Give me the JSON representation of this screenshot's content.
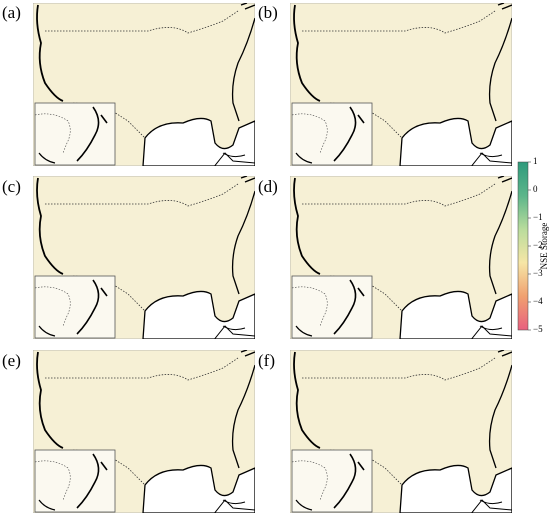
{
  "panels": [
    {
      "label": "(a)"
    },
    {
      "label": "(b)"
    },
    {
      "label": "(c)"
    },
    {
      "label": "(d)"
    },
    {
      "label": "(e)"
    },
    {
      "label": "(f)"
    }
  ],
  "colorbar": {
    "title": "NSE Storage",
    "range": [
      -5,
      1
    ],
    "ticks": [
      1,
      0,
      {
        "value": -1,
        "label": "−1"
      },
      {
        "value": -2,
        "label": "−2"
      },
      {
        "value": -3,
        "label": "−3"
      },
      {
        "value": -4,
        "label": "−4"
      },
      {
        "value": -5,
        "label": "−5"
      }
    ],
    "colors": [
      "#e8607f",
      "#f0a070",
      "#f6e6a6",
      "#b9dc9c",
      "#5cb58a",
      "#2f9a7c"
    ]
  }
}
